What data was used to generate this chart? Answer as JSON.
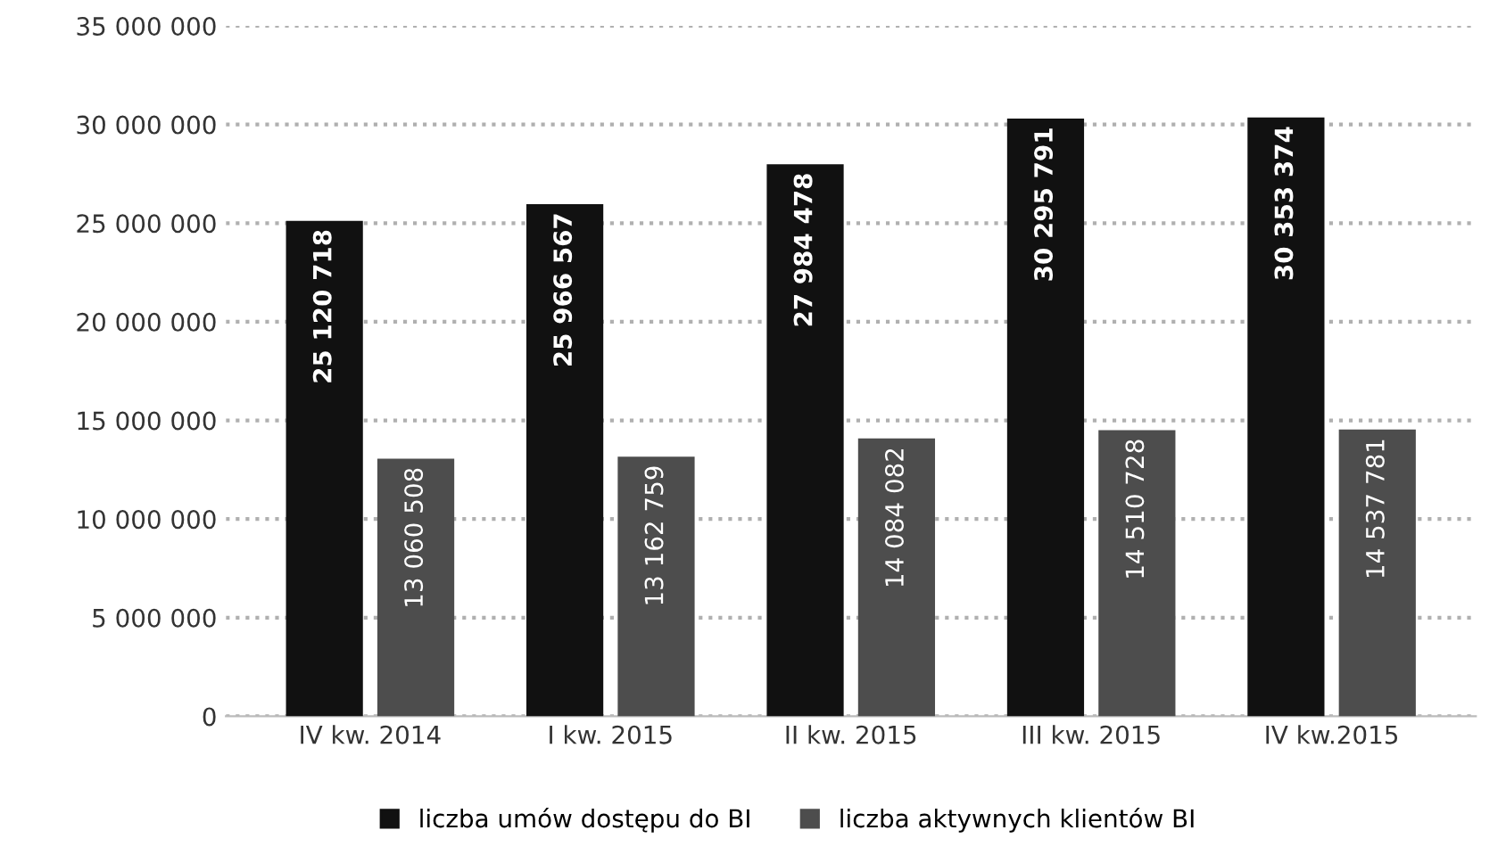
{
  "chart_data": {
    "type": "bar",
    "categories": [
      "IV kw. 2014",
      "I kw. 2015",
      "II kw. 2015",
      "III kw. 2015",
      "IV kw.2015"
    ],
    "series": [
      {
        "name": "liczba umów dostępu do BI",
        "color": "#111111",
        "values": [
          25120718,
          25966567,
          27984478,
          30295791,
          30353374
        ],
        "value_labels": [
          "25 120 718",
          "25 966 567",
          "27 984 478",
          "30 295 791",
          "30 353 374"
        ]
      },
      {
        "name": "liczba aktywnych klientów BI",
        "color": "#4d4d4d",
        "values": [
          13060508,
          13162759,
          14084082,
          14510728,
          14537781
        ],
        "value_labels": [
          "13 060 508",
          "13 162 759",
          "14 084 082",
          "14 510 728",
          "14 537 781"
        ]
      }
    ],
    "ylim": [
      0,
      35000000
    ],
    "yticks": [
      {
        "value": 0,
        "label": "0"
      },
      {
        "value": 5000000,
        "label": "5 000 000"
      },
      {
        "value": 10000000,
        "label": "10 000 000"
      },
      {
        "value": 15000000,
        "label": "15 000 000"
      },
      {
        "value": 20000000,
        "label": "20 000 000"
      },
      {
        "value": 25000000,
        "label": "25 000 000"
      },
      {
        "value": 30000000,
        "label": "30 000 000"
      },
      {
        "value": 35000000,
        "label": "35 000 000"
      }
    ],
    "grid": "y",
    "legend": "bottom"
  }
}
